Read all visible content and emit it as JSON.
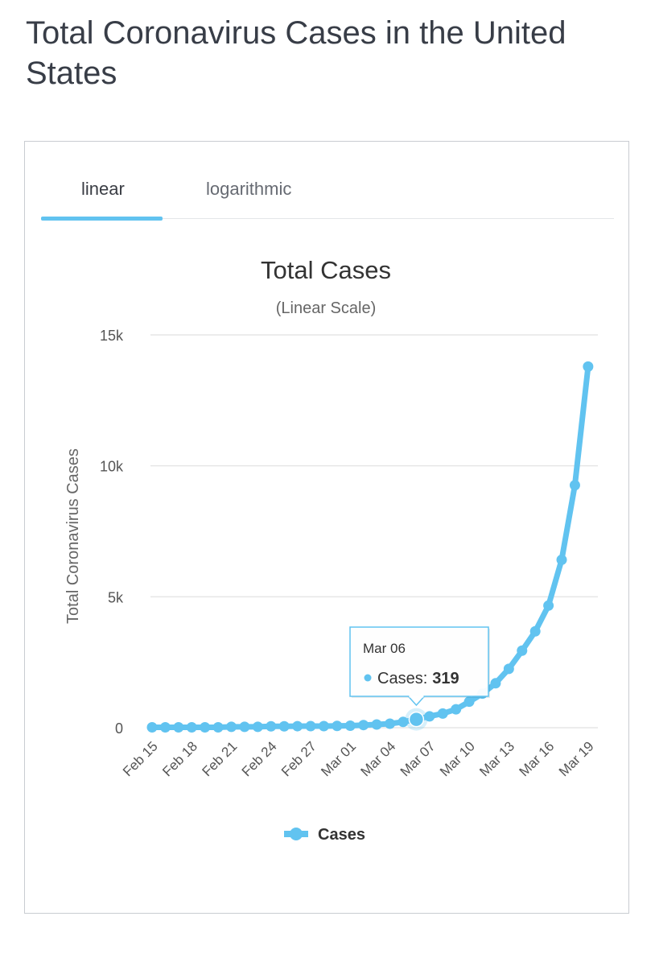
{
  "page": {
    "title": "Total Coronavirus Cases in the United States"
  },
  "tabs": [
    {
      "label": "linear",
      "active": true
    },
    {
      "label": "logarithmic",
      "active": false
    }
  ],
  "colors": {
    "series": "#61c3f0",
    "grid": "#e6e6e6",
    "text": "#555555"
  },
  "chart_data": {
    "type": "line",
    "title": "Total Cases",
    "subtitle": "(Linear Scale)",
    "ylabel": "Total Coronavirus Cases",
    "xlabel": "",
    "ylim": [
      0,
      15000
    ],
    "yticks": [
      {
        "value": 0,
        "label": "0"
      },
      {
        "value": 5000,
        "label": "5k"
      },
      {
        "value": 10000,
        "label": "10k"
      },
      {
        "value": 15000,
        "label": "15k"
      }
    ],
    "x_tick_labels": [
      "Feb 15",
      "Feb 18",
      "Feb 21",
      "Feb 24",
      "Feb 27",
      "Mar 01",
      "Mar 04",
      "Mar 07",
      "Mar 10",
      "Mar 13",
      "Mar 16",
      "Mar 19"
    ],
    "grid": true,
    "legend": {
      "position": "bottom-center"
    },
    "series": [
      {
        "name": "Cases",
        "x": [
          "Feb 15",
          "Feb 16",
          "Feb 17",
          "Feb 18",
          "Feb 19",
          "Feb 20",
          "Feb 21",
          "Feb 22",
          "Feb 23",
          "Feb 24",
          "Feb 25",
          "Feb 26",
          "Feb 27",
          "Feb 28",
          "Feb 29",
          "Mar 01",
          "Mar 02",
          "Mar 03",
          "Mar 04",
          "Mar 05",
          "Mar 06",
          "Mar 07",
          "Mar 08",
          "Mar 09",
          "Mar 10",
          "Mar 11",
          "Mar 12",
          "Mar 13",
          "Mar 14",
          "Mar 15",
          "Mar 16",
          "Mar 17",
          "Mar 18",
          "Mar 19"
        ],
        "values": [
          15,
          15,
          15,
          15,
          15,
          15,
          35,
          35,
          35,
          53,
          53,
          59,
          60,
          62,
          70,
          76,
          101,
          122,
          153,
          221,
          319,
          435,
          541,
          704,
          994,
          1301,
          1697,
          2247,
          2943,
          3680,
          4663,
          6411,
          9259,
          13789
        ]
      }
    ],
    "tooltip": {
      "date": "Mar 06",
      "label": "Cases: ",
      "value": "319"
    }
  }
}
